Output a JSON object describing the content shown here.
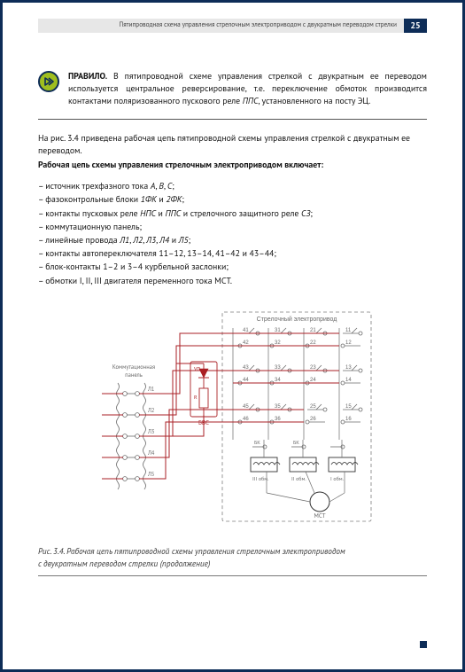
{
  "header": {
    "title": "Пятипроводная схема управления стрелочным электроприводом с двукратным переводом стрелки",
    "page": "25"
  },
  "rule": {
    "lead": "ПРАВИЛО.",
    "text": " В пятипроводной схеме управления стрелкой с двукратным ее переводом используется центральное реверсирование, т.е. переключение обмоток производится контактами поляризованного пускового реле ",
    "em": "ППС",
    "tail": ", установленного на посту ЭЦ."
  },
  "intro1": "На рис. 3.4 приведена рабочая цепь пятипроводной схемы управления стрелкой с двукратным ее переводом.",
  "intro2": "Рабочая цепь схемы управления стрелочным электроприводом включает:",
  "bullets": [
    "– источник трехфазного тока <em>A</em>, <em>B</em>, <em>C</em>;",
    "– фазоконтрольные блоки <em>1ФК</em> и <em>2ФК</em>;",
    "– контакты пусковых реле <em>НПС</em> и <em>ППС</em> и стрелочного защитного реле <em>СЗ</em>;",
    "– коммутационную панель;",
    "– линейные провода <em>Л1</em>, <em>Л2</em>, <em>Л3</em>, <em>Л4</em> и <em>Л5</em>;",
    "– контакты автопереключателя 11–12, 13–14, 41–42 и 43–44;",
    "– блок-контакты 1–2 и 3–4 курбельной заслонки;",
    "– обмотки I, II, III двигателя переменного тока МСТ."
  ],
  "figure": {
    "panel_label": "Коммутационная панель",
    "box_label": "Стрелочный электропривод",
    "bvs": "БВС",
    "vo": "VD",
    "r": "R",
    "mst": "МСТ",
    "bk": "БК",
    "coils": [
      "III обм.",
      "II обм.",
      "I обм."
    ],
    "wires": [
      "Л1",
      "Л2",
      "Л3",
      "Л4",
      "Л5"
    ],
    "sw": {
      "r1": [
        "41",
        "31",
        "21",
        "11"
      ],
      "r2": [
        "42",
        "32",
        "22",
        "12"
      ],
      "r3": [
        "43",
        "33",
        "23",
        "13"
      ],
      "r4": [
        "44",
        "34",
        "24",
        "14"
      ],
      "r5": [
        "45",
        "35",
        "25",
        "15"
      ],
      "r6": [
        "46",
        "36",
        "26",
        "16"
      ]
    },
    "colors": {
      "red": "#aa1f24",
      "grey": "#6a6a6a",
      "dk": "#333333",
      "box": "#7d7d7d"
    }
  },
  "caption1": "Рис. 3.4. Рабочая цепь пятипроводной схемы управления стрелочным электроприводом",
  "caption2": "с двукратным переводом стрелки (продолжение)"
}
